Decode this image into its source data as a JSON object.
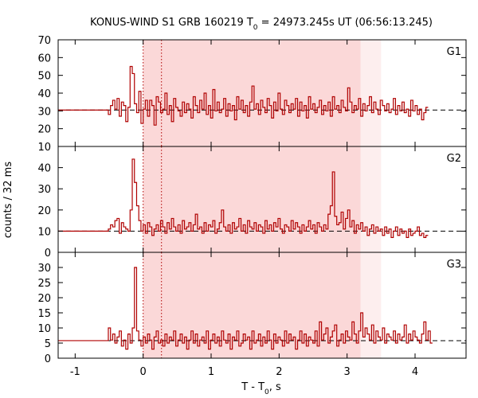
{
  "chart_data": {
    "type": "line",
    "title_main": "KONUS-WIND S1 GRB 160219 T",
    "title_sub": "0",
    "title_rest": " = 24973.245s UT (06:56:13.245)",
    "xlabel_main": "T - T",
    "xlabel_sub": "0",
    "xlabel_rest": ", s",
    "ylabel": "counts / 32 ms",
    "xlim": [
      -1.25,
      4.75
    ],
    "xticks": [
      -1,
      0,
      1,
      2,
      3,
      4
    ],
    "xtick_labels": [
      "-1",
      "0",
      "1",
      "2",
      "3",
      "4"
    ],
    "bin_width_s": 0.032,
    "background_until_s": -0.512,
    "interval_main": [
      0.0,
      3.2
    ],
    "interval_extended": [
      3.2,
      3.5
    ],
    "dotted_lines": [
      0.0,
      0.27
    ],
    "colors": {
      "histogram": "#b00000",
      "interval_main": "#fbd8d8",
      "interval_extended": "#fdeeee",
      "background_line": "#000000",
      "dotted": "#b00000"
    },
    "panels": [
      {
        "label": "G1",
        "ylim": [
          10,
          70
        ],
        "yticks": [
          10,
          20,
          30,
          40,
          50,
          60,
          70
        ],
        "ytick_labels": [
          "10",
          "20",
          "30",
          "40",
          "50",
          "60",
          "70"
        ],
        "background": 30.5,
        "pre_level": 30.5,
        "values": [
          28,
          33,
          36,
          31,
          37,
          27,
          35,
          33,
          24,
          32,
          55,
          51,
          34,
          29,
          41,
          23,
          31,
          36,
          27,
          36,
          33,
          22,
          38,
          35,
          29,
          31,
          40,
          28,
          33,
          24,
          37,
          32,
          30,
          27,
          35,
          29,
          34,
          31,
          26,
          38,
          33,
          29,
          36,
          31,
          40,
          28,
          33,
          26,
          42,
          30,
          35,
          29,
          31,
          37,
          27,
          34,
          30,
          33,
          25,
          38,
          31,
          36,
          29,
          33,
          27,
          35,
          44,
          31,
          34,
          28,
          36,
          32,
          29,
          37,
          33,
          26,
          35,
          30,
          40,
          31,
          28,
          36,
          33,
          29,
          34,
          31,
          37,
          27,
          35,
          30,
          33,
          26,
          38,
          31,
          34,
          29,
          32,
          36,
          28,
          33,
          30,
          35,
          27,
          38,
          31,
          33,
          29,
          36,
          32,
          30,
          43,
          35,
          29,
          33,
          31,
          37,
          27,
          34,
          30,
          33,
          38,
          29,
          35,
          31,
          28,
          36,
          33,
          30,
          34,
          29,
          31,
          37,
          28,
          33,
          30,
          35,
          29,
          31,
          27,
          36,
          30,
          33,
          28,
          31,
          25,
          29,
          32
        ]
      },
      {
        "label": "G2",
        "ylim": [
          0,
          50
        ],
        "yticks": [
          0,
          10,
          20,
          30,
          40
        ],
        "ytick_labels": [
          "0",
          "10",
          "20",
          "30",
          "40"
        ],
        "background": 10.0,
        "pre_level": 10.0,
        "values": [
          11,
          13,
          12,
          15,
          16,
          9,
          14,
          12,
          11,
          10,
          20,
          44,
          33,
          22,
          15,
          10,
          13,
          9,
          14,
          12,
          8,
          11,
          13,
          10,
          15,
          12,
          9,
          14,
          11,
          16,
          12,
          10,
          13,
          9,
          15,
          11,
          12,
          14,
          10,
          13,
          18,
          11,
          12,
          9,
          14,
          10,
          13,
          12,
          15,
          9,
          11,
          14,
          20,
          12,
          10,
          13,
          9,
          14,
          11,
          12,
          16,
          10,
          13,
          9,
          15,
          12,
          11,
          14,
          10,
          13,
          12,
          9,
          15,
          11,
          13,
          10,
          14,
          12,
          16,
          11,
          9,
          13,
          12,
          10,
          15,
          11,
          14,
          12,
          9,
          13,
          10,
          12,
          15,
          11,
          13,
          9,
          14,
          12,
          10,
          13,
          11,
          18,
          22,
          38,
          17,
          13,
          14,
          19,
          11,
          16,
          20,
          12,
          15,
          9,
          13,
          11,
          14,
          10,
          12,
          8,
          11,
          13,
          9,
          12,
          10,
          11,
          8,
          12,
          9,
          11,
          7,
          10,
          12,
          8,
          11,
          9,
          10,
          7,
          11,
          8,
          9,
          10,
          12,
          8,
          9,
          7,
          8
        ]
      },
      {
        "label": "G3",
        "ylim": [
          0,
          35
        ],
        "yticks": [
          0,
          5,
          10,
          15,
          20,
          25,
          30
        ],
        "ytick_labels": [
          "0",
          "5",
          "10",
          "15",
          "20",
          "25",
          "30"
        ],
        "background": 5.8,
        "pre_level": 5.8,
        "values": [
          10,
          6,
          8,
          5,
          7,
          9,
          4,
          6,
          3,
          8,
          5,
          10,
          30,
          9,
          6,
          4,
          7,
          5,
          8,
          6,
          3,
          7,
          9,
          5,
          6,
          4,
          8,
          5,
          7,
          6,
          9,
          4,
          6,
          8,
          5,
          7,
          3,
          6,
          9,
          5,
          8,
          4,
          6,
          7,
          5,
          9,
          3,
          6,
          8,
          5,
          7,
          4,
          9,
          6,
          5,
          8,
          3,
          7,
          6,
          9,
          4,
          5,
          8,
          6,
          7,
          3,
          9,
          5,
          6,
          8,
          4,
          7,
          5,
          9,
          6,
          3,
          8,
          5,
          7,
          6,
          4,
          9,
          5,
          8,
          6,
          7,
          3,
          6,
          9,
          5,
          8,
          4,
          7,
          6,
          5,
          9,
          4,
          12,
          6,
          8,
          10,
          5,
          7,
          9,
          11,
          4,
          6,
          8,
          5,
          9,
          7,
          6,
          12,
          8,
          5,
          9,
          15,
          7,
          10,
          8,
          6,
          11,
          5,
          9,
          7,
          6,
          10,
          5,
          8,
          7,
          6,
          9,
          5,
          8,
          6,
          7,
          11,
          5,
          8,
          6,
          9,
          7,
          6,
          5,
          8,
          12,
          6,
          9,
          5
        ]
      }
    ]
  }
}
